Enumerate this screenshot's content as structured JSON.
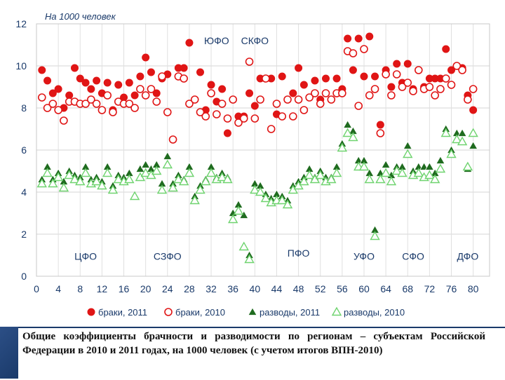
{
  "chart_data": {
    "type": "scatter",
    "unit_label": "На 1000 человек",
    "ylim": [
      0,
      12
    ],
    "yticks": [
      0,
      2,
      4,
      6,
      8,
      10,
      12
    ],
    "xlim": [
      0,
      83
    ],
    "xticks": [
      0,
      4,
      8,
      12,
      16,
      20,
      24,
      28,
      32,
      36,
      40,
      44,
      48,
      52,
      56,
      60,
      64,
      68,
      72,
      76,
      80
    ],
    "grid": true,
    "legend_position": "bottom",
    "regions": [
      {
        "label": "ЦФО",
        "x": 9,
        "y": 0.95
      },
      {
        "label": "СЗФО",
        "x": 24,
        "y": 0.95
      },
      {
        "label": "ЮФО",
        "x": 33,
        "y": 11.2
      },
      {
        "label": "СКФО",
        "x": 40,
        "y": 11.2
      },
      {
        "label": "ПФО",
        "x": 48,
        "y": 1.1
      },
      {
        "label": "УФО",
        "x": 60,
        "y": 0.95
      },
      {
        "label": "СФО",
        "x": 69,
        "y": 0.95
      },
      {
        "label": "ДФО",
        "x": 79,
        "y": 0.95
      }
    ],
    "series": [
      {
        "name": "браки, 2011",
        "marker": "circle",
        "filled": true,
        "color": "#e01515",
        "values": [
          9.8,
          9.3,
          8.7,
          8.9,
          8.0,
          8.6,
          9.9,
          9.4,
          9.2,
          8.9,
          9.3,
          8.7,
          9.2,
          7.9,
          9.1,
          8.5,
          9.2,
          8.6,
          9.5,
          10.4,
          9.7,
          8.7,
          9.4,
          9.6,
          6.5,
          9.9,
          9.9,
          11.1,
          8.4,
          9.7,
          7.9,
          9.1,
          8.3,
          8.9,
          6.8,
          8.4,
          7.6,
          7.6,
          8.7,
          8.1,
          9.4,
          9.4,
          9.4,
          7.7,
          9.5,
          8.4,
          8.7,
          9.9,
          9.1,
          8.5,
          9.3,
          8.4,
          9.4,
          8.4,
          9.4,
          8.9,
          11.3,
          9.8,
          11.3,
          9.5,
          11.4,
          9.5,
          7.2,
          9.8,
          9.0,
          10.1,
          9.2,
          10.1,
          8.9,
          9.8,
          9.0,
          9.4,
          9.4,
          9.4,
          10.8,
          9.8,
          10.0,
          9.9,
          8.6,
          7.9
        ]
      },
      {
        "name": "браки, 2010",
        "marker": "circle",
        "filled": false,
        "color": "#e01515",
        "values": [
          8.5,
          8.0,
          8.2,
          7.9,
          7.4,
          8.3,
          8.3,
          8.2,
          8.2,
          8.4,
          8.2,
          7.9,
          8.6,
          7.8,
          8.3,
          8.2,
          8.2,
          8.0,
          8.9,
          8.6,
          8.9,
          8.3,
          9.5,
          7.8,
          6.5,
          9.5,
          9.4,
          8.2,
          8.4,
          7.8,
          7.6,
          8.7,
          7.7,
          8.2,
          7.5,
          8.4,
          7.3,
          7.5,
          10.2,
          7.5,
          8.4,
          9.4,
          7.0,
          8.2,
          7.6,
          8.4,
          7.6,
          8.4,
          7.9,
          8.5,
          8.7,
          8.2,
          8.7,
          8.4,
          8.7,
          8.7,
          10.7,
          10.6,
          8.1,
          10.8,
          8.6,
          8.9,
          6.8,
          9.6,
          8.6,
          9.6,
          9.0,
          9.2,
          8.8,
          9.8,
          8.9,
          9.0,
          8.6,
          8.9,
          9.4,
          9.1,
          10.0,
          9.8,
          8.4,
          8.9
        ]
      },
      {
        "name": "разводы, 2011",
        "marker": "triangle",
        "filled": true,
        "color": "#1f6b1f",
        "values": [
          4.6,
          5.2,
          4.6,
          4.9,
          4.5,
          5.0,
          4.8,
          4.7,
          5.2,
          4.6,
          4.7,
          4.5,
          5.2,
          4.3,
          4.8,
          4.7,
          4.9,
          3.8,
          5.1,
          5.3,
          5.1,
          5.3,
          4.4,
          5.7,
          4.4,
          4.8,
          4.6,
          5.2,
          3.8,
          4.3,
          4.6,
          5.2,
          4.7,
          4.9,
          4.7,
          3.0,
          3.4,
          2.9,
          1.0,
          4.4,
          4.3,
          3.9,
          3.7,
          3.9,
          3.8,
          3.6,
          4.3,
          4.5,
          4.7,
          5.1,
          4.7,
          5.0,
          4.7,
          4.7,
          5.2,
          6.3,
          7.2,
          6.9,
          5.5,
          5.5,
          4.9,
          2.2,
          4.9,
          5.3,
          4.8,
          5.2,
          5.2,
          6.2,
          5.0,
          5.2,
          5.2,
          5.2,
          4.9,
          5.5,
          7.0,
          6.0,
          6.8,
          6.8,
          5.1,
          6.2
        ]
      },
      {
        "name": "разводы, 2010",
        "marker": "triangle",
        "filled": false,
        "color": "#6fd36f",
        "values": [
          4.4,
          4.9,
          4.4,
          4.7,
          4.2,
          4.8,
          4.6,
          4.5,
          4.9,
          4.4,
          4.5,
          4.3,
          4.9,
          4.1,
          4.6,
          4.5,
          4.6,
          3.8,
          4.7,
          4.9,
          4.8,
          5.0,
          4.1,
          5.3,
          4.2,
          4.6,
          4.5,
          4.9,
          3.6,
          4.1,
          4.5,
          4.9,
          4.6,
          4.7,
          4.6,
          2.7,
          3.1,
          1.4,
          0.8,
          4.1,
          4.0,
          3.7,
          3.5,
          3.6,
          3.6,
          3.4,
          4.1,
          4.3,
          4.5,
          4.8,
          4.6,
          4.8,
          4.5,
          4.6,
          4.9,
          6.1,
          6.8,
          6.6,
          5.2,
          5.2,
          4.6,
          1.9,
          4.6,
          4.9,
          4.5,
          5.0,
          4.9,
          5.8,
          4.8,
          4.9,
          4.7,
          4.8,
          4.6,
          5.1,
          6.8,
          5.8,
          6.5,
          6.4,
          5.2,
          6.8
        ]
      }
    ]
  },
  "caption": "Общие коэффициенты брачности и разводимости по регионам – субъектам Российской Федерации в 2010 и 2011 годах, на 1000 человек (с учетом итогов ВПН-2010)"
}
